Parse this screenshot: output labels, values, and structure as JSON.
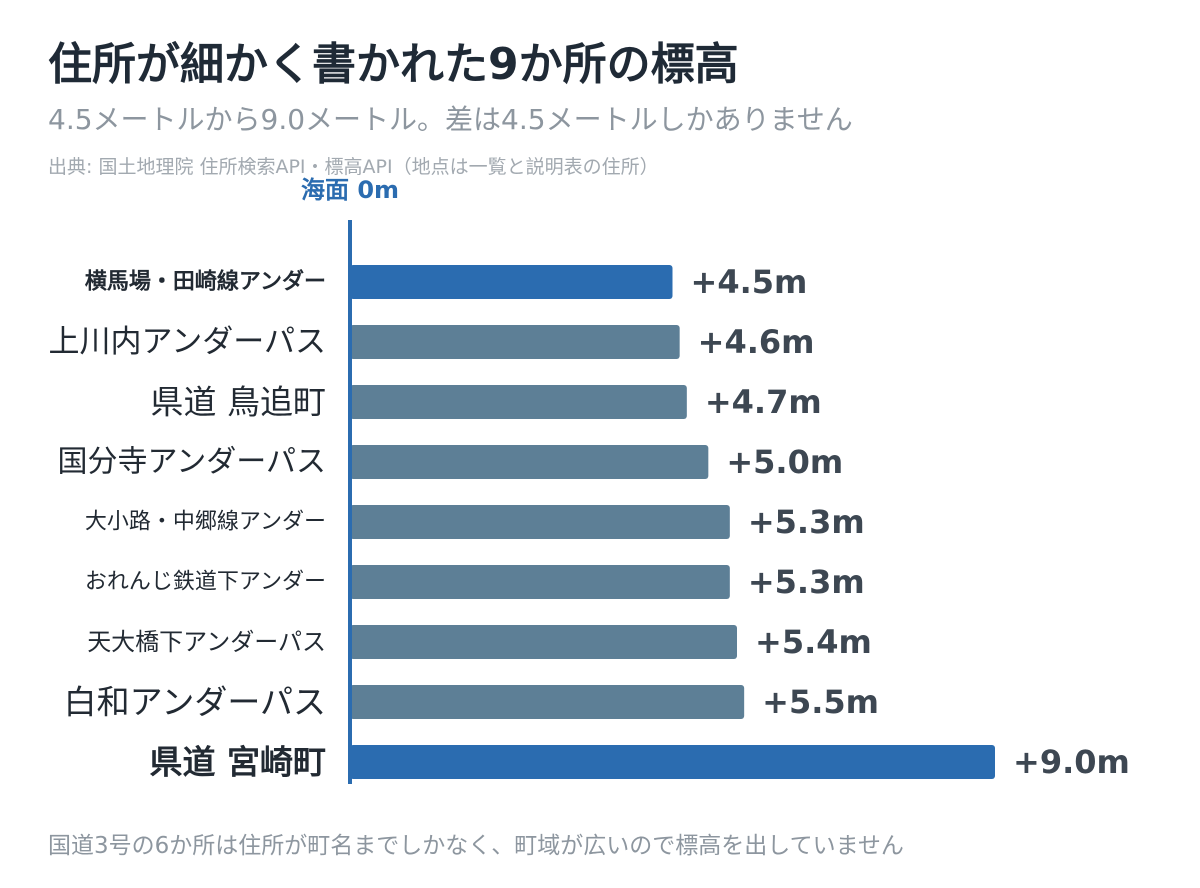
{
  "title": "住所が細かく書かれた9か所の標高",
  "subtitle": "4.5メートルから9.0メートル。差は4.5メートルしかありません",
  "source": "出典: 国土地理院 住所検索API・標高API（地点は一覧と説明表の住所）",
  "footnote": "国道3号の6か所は住所が町名までしかなく、町域が広いので標高を出していません",
  "colors": {
    "highlight": "#2b6cb0",
    "normal": "#5d7f96",
    "axis": "#2b6cb0"
  },
  "chart_data": {
    "type": "bar",
    "orientation": "horizontal",
    "axis_label": "海面 0m",
    "categories": [
      "横馬場・田崎線アンダー",
      "上川内アンダーパス",
      "県道 鳥追町",
      "国分寺アンダーパス",
      "大小路・中郷線アンダー",
      "おれんじ鉄道下アンダー",
      "天大橋下アンダーパス",
      "白和アンダーパス",
      "県道 宮崎町"
    ],
    "values": [
      4.5,
      4.6,
      4.7,
      5.0,
      5.3,
      5.3,
      5.4,
      5.5,
      9.0
    ],
    "value_labels": [
      "+4.5m",
      "+4.6m",
      "+4.7m",
      "+5.0m",
      "+5.3m",
      "+5.3m",
      "+5.4m",
      "+5.5m",
      "+9.0m"
    ],
    "highlighted": [
      true,
      false,
      false,
      false,
      false,
      false,
      false,
      false,
      true
    ],
    "xlim": [
      0,
      9.0
    ],
    "grid": false,
    "legend": "none"
  }
}
